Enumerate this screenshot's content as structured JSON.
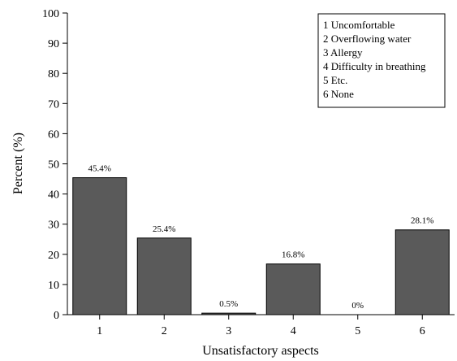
{
  "chart_data": {
    "type": "bar",
    "categories": [
      "1",
      "2",
      "3",
      "4",
      "5",
      "6"
    ],
    "values": [
      45.4,
      25.4,
      0.5,
      16.8,
      0,
      28.1
    ],
    "data_labels": [
      "45.4%",
      "25.4%",
      "0.5%",
      "16.8%",
      "0%",
      "28.1%"
    ],
    "xlabel": "Unsatisfactory aspects",
    "ylabel": "Percent (%)",
    "ylim": [
      0,
      100
    ],
    "yticks": [
      0,
      10,
      20,
      30,
      40,
      50,
      60,
      70,
      80,
      90,
      100
    ],
    "grid": false,
    "legend": {
      "position": "top-right",
      "entries": [
        "1 Uncomfortable",
        "2 Overflowing water",
        "3 Allergy",
        "4 Difficulty in breathing",
        "5 Etc.",
        "6 None"
      ]
    },
    "bar_color": "#5a5a5a"
  }
}
